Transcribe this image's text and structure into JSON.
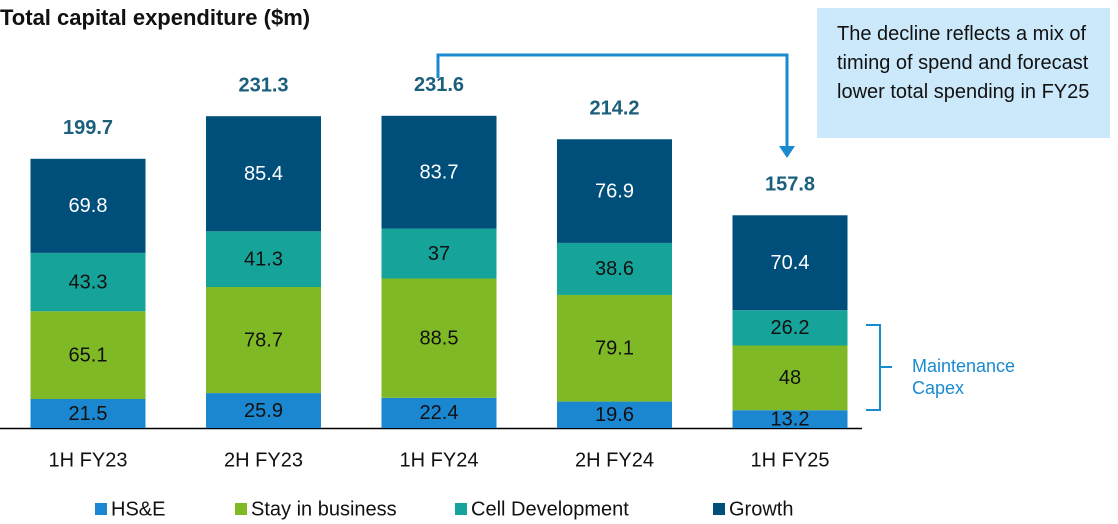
{
  "chart_data": {
    "type": "stacked_bar",
    "title": "Total capital expenditure ($m)",
    "categories": [
      "1H FY23",
      "2H FY23",
      "1H FY24",
      "2H FY24",
      "1H FY25"
    ],
    "series": [
      {
        "name": "HS&E",
        "color": "#1a87d0",
        "label_color": "#111111",
        "values": [
          21.5,
          25.9,
          22.4,
          19.6,
          13.2
        ]
      },
      {
        "name": "Stay in business",
        "color": "#7fba26",
        "label_color": "#111111",
        "values": [
          65.1,
          78.7,
          88.5,
          79.1,
          48.0
        ]
      },
      {
        "name": "Cell Development",
        "color": "#16a39a",
        "label_color": "#111111",
        "values": [
          43.3,
          41.3,
          37.0,
          38.6,
          26.2
        ]
      },
      {
        "name": "Growth",
        "color": "#004e7a",
        "label_color": "#ffffff",
        "values": [
          69.8,
          85.4,
          83.7,
          76.9,
          70.4
        ]
      }
    ],
    "totals": [
      199.7,
      231.3,
      231.6,
      214.2,
      157.8
    ],
    "ylim": [
      0,
      250
    ],
    "annotation": "The decline reflects a mix of timing of spend and forecast lower total spending in FY25",
    "bracket_label": "Maintenance Capex",
    "legend": "bottom"
  }
}
